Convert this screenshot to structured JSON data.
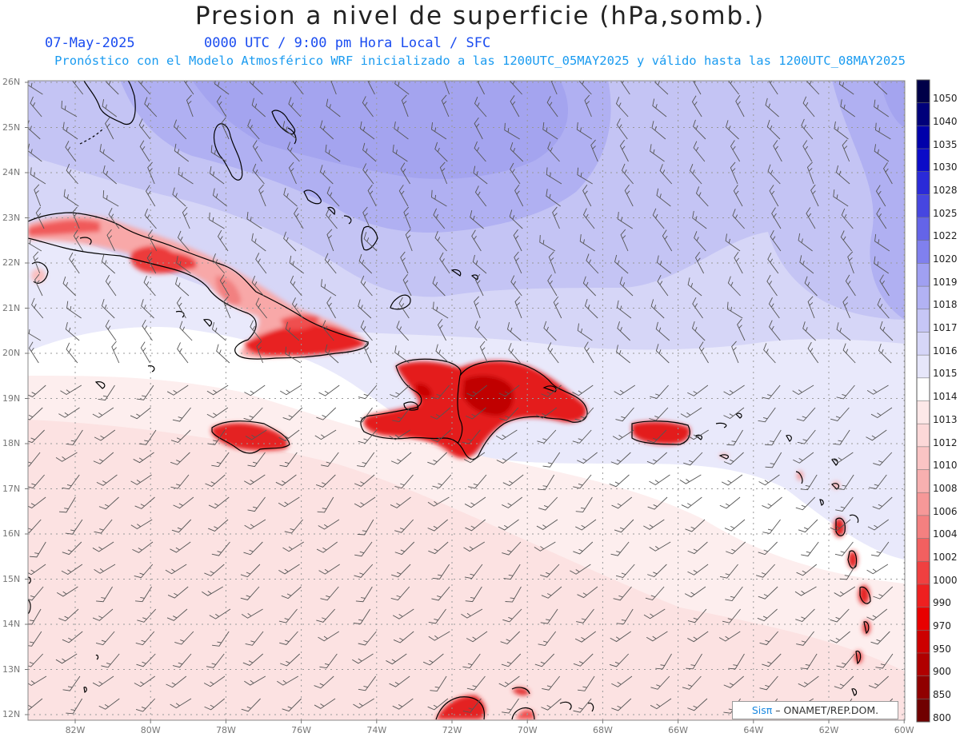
{
  "header": {
    "title": "Presion a nivel de superficie (hPa,somb.)",
    "date": "07-May-2025",
    "time_info": "0000 UTC / 9:00 pm Hora Local / SFC",
    "forecast_info": "Pronóstico con el Modelo Atmosférico WRF inicializado a las 1200UTC_05MAY2025 y válido hasta las  1200UTC_08MAY2025"
  },
  "map": {
    "lat_labels": [
      "26N",
      "25N",
      "24N",
      "23N",
      "22N",
      "21N",
      "20N",
      "19N",
      "18N",
      "17N",
      "16N",
      "15N",
      "14N",
      "13N",
      "12N"
    ],
    "lon_labels": [
      "82W",
      "80W",
      "78W",
      "76W",
      "74W",
      "72W",
      "70W",
      "68W",
      "66W",
      "64W",
      "62W",
      "60W"
    ]
  },
  "colorbar": {
    "levels": [
      "1050",
      "1040",
      "1035",
      "1030",
      "1028",
      "1025",
      "1022",
      "1020",
      "1019",
      "1018",
      "1017",
      "1016",
      "1015",
      "1014",
      "1013",
      "1012",
      "1010",
      "1008",
      "1006",
      "1004",
      "1002",
      "1000",
      "990",
      "970",
      "950",
      "900",
      "850",
      "800"
    ],
    "colors": [
      "#000048",
      "#00007a",
      "#0000aa",
      "#0b0bc8",
      "#2a2ad8",
      "#4646e0",
      "#6464e8",
      "#8080ee",
      "#a0a0f2",
      "#b2b2f4",
      "#c6c6f6",
      "#d6d6f8",
      "#e6e6fa",
      "#ffffff",
      "#fde8e8",
      "#fcd8d8",
      "#fac4c4",
      "#f8b0b0",
      "#f69898",
      "#f48080",
      "#f26060",
      "#f04040",
      "#ee2020",
      "#e80000",
      "#cc0000",
      "#b00000",
      "#900000",
      "#700000"
    ]
  },
  "credit": {
    "brand": "Sisπ",
    "text": "– ONAMET/REP.DOM."
  }
}
